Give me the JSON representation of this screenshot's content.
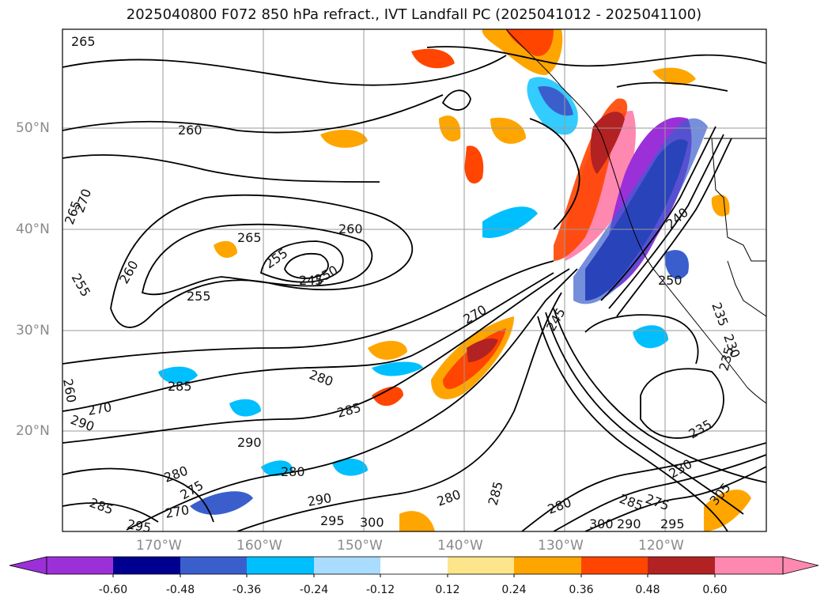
{
  "title": "2025040800 F072 850 hPa refract., IVT Landfall PC (2025041012 - 2025041100)",
  "lat_labels": [
    "50°N",
    "40°N",
    "30°N",
    "20°N"
  ],
  "lon_labels": [
    "170°W",
    "160°W",
    "150°W",
    "140°W",
    "130°W",
    "120°W"
  ],
  "colorbar": {
    "ticks": [
      "-0.60",
      "-0.48",
      "-0.36",
      "-0.24",
      "-0.12",
      "0.12",
      "0.24",
      "0.36",
      "0.48",
      "0.60"
    ],
    "colors": [
      "#9b30d9",
      "#000090",
      "#3a5fcd",
      "#00bfff",
      "#aadcff",
      "#ffffff",
      "#fce58a",
      "#ffa500",
      "#ff4500",
      "#b22222",
      "#ff88b0"
    ]
  },
  "contour_labels": [
    "265",
    "260",
    "265",
    "270",
    "255",
    "260",
    "265",
    "260",
    "255",
    "250",
    "245",
    "255",
    "260",
    "285",
    "270",
    "280",
    "285",
    "290",
    "285",
    "280",
    "290",
    "275",
    "280",
    "290",
    "295",
    "270",
    "295",
    "300",
    "280",
    "285",
    "270",
    "245",
    "240",
    "250",
    "235",
    "230",
    "235",
    "235",
    "230",
    "275",
    "285",
    "280",
    "290",
    "300",
    "305",
    "295"
  ]
}
